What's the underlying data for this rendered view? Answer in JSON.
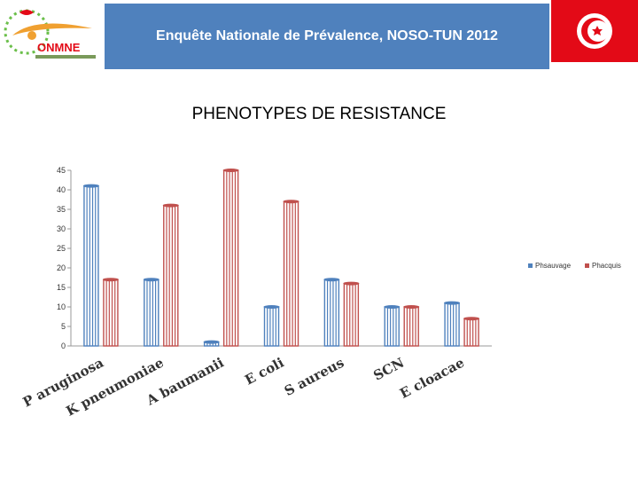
{
  "header": {
    "logo_text": "ONMNE",
    "banner_title": "Enquête Nationale de Prévalence, NOSO-TUN 2012"
  },
  "colors": {
    "banner": "#4f81bd",
    "series_1": "#4f81bd",
    "series_2": "#c0504d",
    "logo_accent": "#f0a030",
    "flag_red": "#e30a17"
  },
  "chart_data": {
    "type": "bar",
    "title": "PHENOTYPES DE RESISTANCE",
    "xlabel": "",
    "ylabel": "",
    "categories": [
      "P aruginosa",
      "K pneumoniae",
      "A baumanii",
      "E coli",
      "S aureus",
      "SCN",
      "E cloacae"
    ],
    "series": [
      {
        "name": "Phsauvage",
        "values": [
          41,
          17,
          1,
          10,
          17,
          10,
          11
        ]
      },
      {
        "name": "Phacquis",
        "values": [
          17,
          36,
          45,
          37,
          16,
          10,
          7
        ]
      }
    ],
    "ylim": [
      0,
      45
    ],
    "yticks": [
      "0",
      "5",
      "10",
      "15",
      "20",
      "25",
      "30",
      "35",
      "40",
      "45"
    ],
    "grid": false,
    "legend": "right"
  }
}
